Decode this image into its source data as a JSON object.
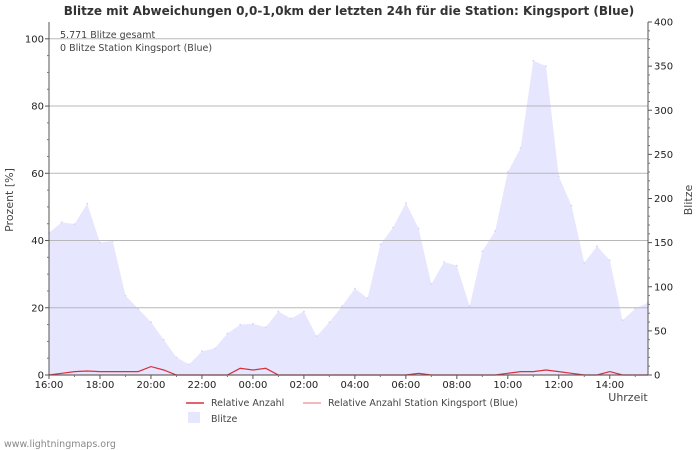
{
  "chart_data": {
    "type": "area",
    "title": "Blitze mit Abweichungen 0,0-1,0km der letzten 24h für die Station: Kingsport (Blue)",
    "info_lines": [
      "5.771 Blitze gesamt",
      "0 Blitze Station Kingsport (Blue)"
    ],
    "ylabel_left": "Prozent   [%]",
    "ylabel_right": "Blitze",
    "xlabel": "Uhrzeit",
    "ylim_left": [
      0,
      105
    ],
    "ylim_right": [
      0,
      400
    ],
    "yticks_left": [
      "0",
      "20",
      "40",
      "60",
      "80",
      "100"
    ],
    "yticks_right": [
      "0",
      "50",
      "100",
      "150",
      "200",
      "250",
      "300",
      "350",
      "400"
    ],
    "xticks": [
      "16:00",
      "18:00",
      "20:00",
      "22:00",
      "00:00",
      "02:00",
      "04:00",
      "06:00",
      "08:00",
      "10:00",
      "12:00",
      "14:00"
    ],
    "x_hours": [
      0,
      0.5,
      1,
      1.5,
      2,
      2.5,
      3,
      3.5,
      4,
      4.5,
      5,
      5.5,
      6,
      6.5,
      7,
      7.5,
      8,
      8.5,
      9,
      9.5,
      10,
      10.5,
      11,
      11.5,
      12,
      12.5,
      13,
      13.5,
      14,
      14.5,
      15,
      15.5,
      16,
      16.5,
      17,
      17.5,
      18,
      18.5,
      19,
      19.5,
      20,
      20.5,
      21,
      21.5,
      22,
      22.5,
      23,
      23.5
    ],
    "series": [
      {
        "name": "Blitze",
        "axis": "right",
        "color": "#e6e6ff",
        "values": [
          161,
          173,
          171,
          194,
          150,
          152,
          90,
          75,
          60,
          40,
          20,
          12,
          27,
          30,
          47,
          57,
          58,
          54,
          72,
          64,
          72,
          44,
          60,
          78,
          98,
          87,
          148,
          167,
          195,
          166,
          103,
          128,
          124,
          78,
          140,
          163,
          230,
          257,
          356,
          350,
          225,
          192,
          127,
          146,
          130,
          62,
          75,
          82
        ]
      },
      {
        "name": "Relative Anzahl",
        "axis": "left",
        "color": "#d9303c",
        "values": [
          0,
          0.5,
          1,
          1.2,
          1,
          1,
          1,
          1,
          2.5,
          1.5,
          0,
          0,
          0,
          0,
          0,
          2,
          1.5,
          2,
          0,
          0,
          0,
          0,
          0,
          0,
          0,
          0,
          0,
          0,
          0,
          0.5,
          0,
          0,
          0,
          0,
          0,
          0,
          0.5,
          1,
          1,
          1.5,
          1,
          0.5,
          0,
          0,
          1,
          0,
          0,
          0
        ]
      },
      {
        "name": "Relative Anzahl Station Kingsport (Blue)",
        "axis": "left",
        "color": "#f0a0a0",
        "values": [
          0,
          0,
          0,
          0,
          0,
          0,
          0,
          0,
          0,
          0,
          0,
          0,
          0,
          0,
          0,
          0,
          0,
          0,
          0,
          0,
          0,
          0,
          0,
          0,
          0,
          0,
          0,
          0,
          0,
          0,
          0,
          0,
          0,
          0,
          0,
          0,
          0,
          0,
          0,
          0,
          0,
          0,
          0,
          0,
          0,
          0,
          0,
          0
        ]
      }
    ],
    "legend": [
      "Relative Anzahl",
      "Relative Anzahl Station Kingsport (Blue)",
      "Blitze"
    ],
    "legend_position": "bottom"
  },
  "footer": "www.lightningmaps.org"
}
